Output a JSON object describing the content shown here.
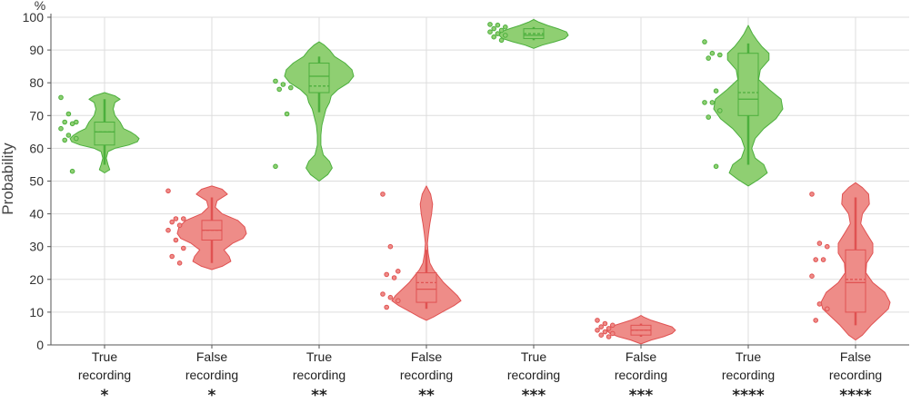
{
  "chart_data": {
    "type": "violin",
    "ylabel": "Probability",
    "yunit": "%",
    "ylim": [
      0,
      100
    ],
    "yticks": [
      0,
      10,
      20,
      30,
      40,
      50,
      60,
      70,
      80,
      90,
      100
    ],
    "grid": true,
    "colors": {
      "true": "#4caf3d",
      "false": "#e05252",
      "true_fill": "#8fcf72",
      "false_fill": "#ee8c88"
    },
    "groups": [
      {
        "label_lines": [
          "True",
          "recording"
        ],
        "significance": "*",
        "kind": "true",
        "median": 65,
        "q1": 61,
        "q3": 68,
        "whisker_low": 55,
        "whisker_high": 75,
        "mean": 65,
        "violin": [
          [
            52.5,
            0.0
          ],
          [
            53.5,
            0.15
          ],
          [
            55,
            0.1
          ],
          [
            57,
            0.05
          ],
          [
            59,
            0.1
          ],
          [
            60,
            0.3
          ],
          [
            61,
            0.7
          ],
          [
            62,
            0.95
          ],
          [
            63,
            1.0
          ],
          [
            64,
            0.9
          ],
          [
            65,
            0.75
          ],
          [
            66,
            0.55
          ],
          [
            68,
            0.45
          ],
          [
            70,
            0.3
          ],
          [
            72,
            0.25
          ],
          [
            74,
            0.3
          ],
          [
            75,
            0.45
          ],
          [
            76,
            0.3
          ],
          [
            77,
            0.0
          ]
        ],
        "points": [
          75.5,
          70.5,
          68,
          68,
          67.5,
          66,
          64,
          63,
          62.5,
          53
        ]
      },
      {
        "label_lines": [
          "False",
          "recording"
        ],
        "significance": "*",
        "kind": "false",
        "median": 35,
        "q1": 32,
        "q3": 38,
        "whisker_low": 25,
        "whisker_high": 45,
        "mean": 35,
        "violin": [
          [
            23,
            0.0
          ],
          [
            24,
            0.3
          ],
          [
            25.5,
            0.55
          ],
          [
            27,
            0.5
          ],
          [
            29,
            0.35
          ],
          [
            31,
            0.6
          ],
          [
            32.5,
            0.9
          ],
          [
            34,
            1.0
          ],
          [
            36,
            0.95
          ],
          [
            38,
            0.75
          ],
          [
            40,
            0.3
          ],
          [
            42,
            0.1
          ],
          [
            44,
            0.15
          ],
          [
            46,
            0.45
          ],
          [
            47.5,
            0.3
          ],
          [
            48.5,
            0.0
          ]
        ],
        "points": [
          47,
          38.5,
          38.5,
          37.5,
          36.5,
          35,
          32,
          29.5,
          27,
          25
        ]
      },
      {
        "label_lines": [
          "True",
          "recording"
        ],
        "significance": "**",
        "kind": "true",
        "median": 82,
        "q1": 77,
        "q3": 86,
        "whisker_low": 71,
        "whisker_high": 88,
        "mean": 79,
        "violin": [
          [
            50,
            0.0
          ],
          [
            52,
            0.25
          ],
          [
            54,
            0.38
          ],
          [
            56,
            0.3
          ],
          [
            58,
            0.12
          ],
          [
            61,
            0.05
          ],
          [
            64,
            0.05
          ],
          [
            67,
            0.08
          ],
          [
            70,
            0.15
          ],
          [
            72,
            0.2
          ],
          [
            74,
            0.3
          ],
          [
            76,
            0.35
          ],
          [
            78,
            0.55
          ],
          [
            80,
            0.85
          ],
          [
            82,
            1.0
          ],
          [
            84,
            0.95
          ],
          [
            86,
            0.75
          ],
          [
            88,
            0.45
          ],
          [
            90,
            0.3
          ],
          [
            91.5,
            0.15
          ],
          [
            92.5,
            0.0
          ]
        ],
        "points": [
          80.5,
          79.5,
          78.5,
          78,
          70.5,
          54.5
        ]
      },
      {
        "label_lines": [
          "False",
          "recording"
        ],
        "significance": "**",
        "kind": "false",
        "median": 17,
        "q1": 13,
        "q3": 22,
        "whisker_low": 11,
        "whisker_high": 29,
        "mean": 19,
        "violin": [
          [
            7.5,
            0.0
          ],
          [
            8.5,
            0.2
          ],
          [
            10,
            0.45
          ],
          [
            12,
            0.8
          ],
          [
            13.5,
            1.0
          ],
          [
            15,
            0.9
          ],
          [
            17,
            0.7
          ],
          [
            19,
            0.5
          ],
          [
            21,
            0.35
          ],
          [
            23,
            0.2
          ],
          [
            25,
            0.1
          ],
          [
            28,
            0.05
          ],
          [
            31,
            0.03
          ],
          [
            34,
            0.06
          ],
          [
            37,
            0.1
          ],
          [
            40,
            0.15
          ],
          [
            43,
            0.18
          ],
          [
            46,
            0.12
          ],
          [
            48.5,
            0.0
          ]
        ],
        "points": [
          46,
          30,
          22.5,
          21.5,
          20.5,
          15.5,
          14.5,
          13.5,
          11.5
        ]
      },
      {
        "label_lines": [
          "True",
          "recording"
        ],
        "significance": "***",
        "kind": "true",
        "median": 94.5,
        "q1": 93.5,
        "q3": 96.5,
        "whisker_low": 93,
        "whisker_high": 97,
        "mean": 95,
        "violin": [
          [
            90.5,
            0.0
          ],
          [
            91.5,
            0.25
          ],
          [
            92.5,
            0.6
          ],
          [
            93.5,
            0.9
          ],
          [
            94.5,
            1.0
          ],
          [
            95.5,
            0.95
          ],
          [
            96.5,
            0.7
          ],
          [
            97.5,
            0.4
          ],
          [
            98.5,
            0.15
          ],
          [
            99.3,
            0.0
          ]
        ],
        "points": [
          97.8,
          97.6,
          97,
          96.5,
          96,
          95.5,
          95,
          94.5,
          94,
          93
        ]
      },
      {
        "label_lines": [
          "False",
          "recording"
        ],
        "significance": "***",
        "kind": "false",
        "median": 4.5,
        "q1": 3,
        "q3": 6,
        "whisker_low": 2.5,
        "whisker_high": 6.5,
        "mean": 4.5,
        "violin": [
          [
            0.3,
            0.0
          ],
          [
            1.5,
            0.3
          ],
          [
            2.5,
            0.65
          ],
          [
            3.5,
            0.9
          ],
          [
            4.5,
            1.0
          ],
          [
            5.5,
            0.9
          ],
          [
            6.5,
            0.6
          ],
          [
            7.5,
            0.3
          ],
          [
            8.5,
            0.08
          ],
          [
            9,
            0.0
          ]
        ],
        "points": [
          7.5,
          6.5,
          6,
          5.5,
          5,
          4.5,
          4,
          3.5,
          3,
          2.5
        ]
      },
      {
        "label_lines": [
          "True",
          "recording"
        ],
        "significance": "****",
        "kind": "true",
        "median": 75,
        "q1": 70,
        "q3": 89,
        "whisker_low": 55,
        "whisker_high": 92,
        "mean": 77,
        "violin": [
          [
            48.5,
            0.0
          ],
          [
            50.5,
            0.3
          ],
          [
            52.5,
            0.55
          ],
          [
            55,
            0.45
          ],
          [
            57,
            0.2
          ],
          [
            60,
            0.1
          ],
          [
            63,
            0.2
          ],
          [
            66,
            0.45
          ],
          [
            69,
            0.8
          ],
          [
            72,
            1.0
          ],
          [
            75,
            0.95
          ],
          [
            78,
            0.6
          ],
          [
            81,
            0.3
          ],
          [
            84,
            0.35
          ],
          [
            87,
            0.6
          ],
          [
            89,
            0.6
          ],
          [
            91,
            0.4
          ],
          [
            93,
            0.25
          ],
          [
            95,
            0.12
          ],
          [
            97.5,
            0.0
          ]
        ],
        "points": [
          92.5,
          89,
          88.5,
          87.5,
          77.5,
          74,
          74,
          71.5,
          69.5,
          54.5
        ]
      },
      {
        "label_lines": [
          "False",
          "recording"
        ],
        "significance": "****",
        "kind": "false",
        "median": 19,
        "q1": 10,
        "q3": 29,
        "whisker_low": 6,
        "whisker_high": 45,
        "mean": 20,
        "violin": [
          [
            1.5,
            0.0
          ],
          [
            3,
            0.2
          ],
          [
            6,
            0.45
          ],
          [
            9,
            0.75
          ],
          [
            11,
            0.95
          ],
          [
            13,
            1.0
          ],
          [
            16,
            0.85
          ],
          [
            19,
            0.5
          ],
          [
            22,
            0.3
          ],
          [
            25,
            0.32
          ],
          [
            28,
            0.5
          ],
          [
            31,
            0.5
          ],
          [
            34,
            0.32
          ],
          [
            37,
            0.15
          ],
          [
            40,
            0.2
          ],
          [
            43,
            0.4
          ],
          [
            46,
            0.38
          ],
          [
            48,
            0.2
          ],
          [
            49.5,
            0.0
          ]
        ],
        "points": [
          46,
          31,
          30,
          26,
          26,
          21,
          12.5,
          11,
          7.5
        ]
      }
    ]
  }
}
